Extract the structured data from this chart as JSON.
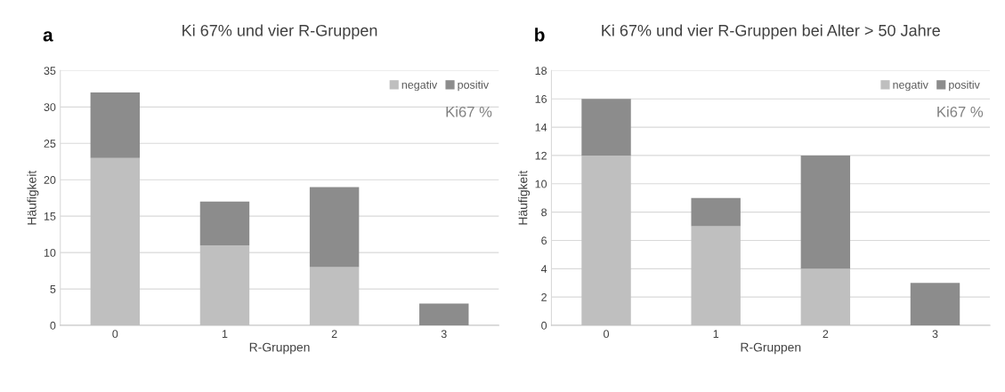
{
  "chart_data": [
    {
      "type": "bar",
      "title": "Ki 67% und vier R-Gruppen",
      "xlabel": "R-Gruppen",
      "ylabel": "Häufigkeit",
      "annotations": [
        "a"
      ],
      "categories": [
        "0",
        "1",
        "2",
        "3"
      ],
      "stacked": true,
      "legend": "top right",
      "legend_title": "Ki67 %",
      "grid": "y",
      "ylim": [
        0,
        35
      ],
      "yticks": [
        0,
        5,
        10,
        15,
        20,
        25,
        30,
        35
      ],
      "series": [
        {
          "name": "negativ",
          "color": "#bfbfbf",
          "values": [
            23,
            11,
            8,
            0
          ]
        },
        {
          "name": "positiv",
          "color": "#8c8c8c",
          "values": [
            9,
            6,
            11,
            3
          ]
        }
      ]
    },
    {
      "type": "bar",
      "title": "Ki 67% und vier R-Gruppen bei Alter > 50 Jahre",
      "xlabel": "R-Gruppen",
      "ylabel": "Häufigkeit",
      "annotations": [
        "b"
      ],
      "categories": [
        "0",
        "1",
        "2",
        "3"
      ],
      "stacked": true,
      "legend": "top right",
      "legend_title": "Ki67 %",
      "grid": "y",
      "ylim": [
        0,
        18
      ],
      "yticks": [
        0,
        2,
        4,
        6,
        8,
        10,
        12,
        14,
        16,
        18
      ],
      "series": [
        {
          "name": "negativ",
          "color": "#bfbfbf",
          "values": [
            12,
            7,
            4,
            0
          ]
        },
        {
          "name": "positiv",
          "color": "#8c8c8c",
          "values": [
            4,
            2,
            8,
            3
          ]
        }
      ]
    }
  ]
}
